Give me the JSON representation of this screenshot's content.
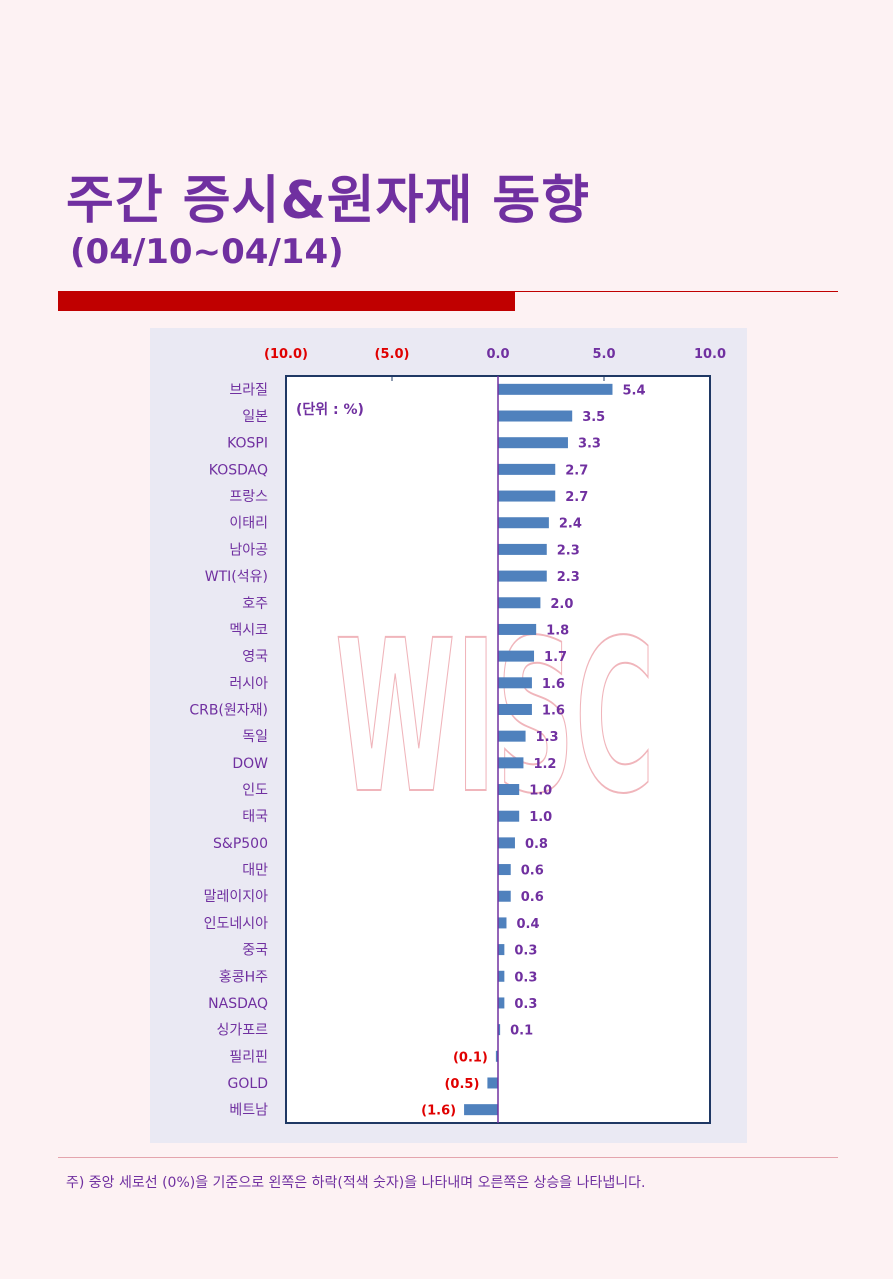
{
  "header": {
    "title": "주간 증시&원자재 동향",
    "subtitle": "(04/10~04/14)"
  },
  "footnote": "주) 중앙 세로선 (0%)을 기준으로 왼쪽은 하락(적색 숫자)을 나타내며 오른쪽은 상승을 나타냅니다.",
  "colors": {
    "bar": "#4f81bd",
    "negative_label": "#e00000",
    "text": "#7030a0",
    "zero_line": "#7030a0",
    "frame": "#1f3864"
  },
  "chart_data": {
    "type": "bar",
    "orientation": "horizontal",
    "unit_label": "(단위 : %)",
    "watermark": "WISC",
    "xlim": [
      -10,
      10
    ],
    "x_ticks": [
      {
        "value": -10,
        "label": "(10.0)"
      },
      {
        "value": -5,
        "label": "(5.0)"
      },
      {
        "value": 0,
        "label": "0.0"
      },
      {
        "value": 5,
        "label": "5.0"
      },
      {
        "value": 10,
        "label": "10.0"
      }
    ],
    "categories": [
      "브라질",
      "일본",
      "KOSPI",
      "KOSDAQ",
      "프랑스",
      "이태리",
      "남아공",
      "WTI(석유)",
      "호주",
      "멕시코",
      "영국",
      "러시아",
      "CRB(원자재)",
      "독일",
      "DOW",
      "인도",
      "태국",
      "S&P500",
      "대만",
      "말레이지아",
      "인도네시아",
      "중국",
      "홍콩H주",
      "NASDAQ",
      "싱가포르",
      "필리핀",
      "GOLD",
      "베트남"
    ],
    "values": [
      5.4,
      3.5,
      3.3,
      2.7,
      2.7,
      2.4,
      2.3,
      2.3,
      2.0,
      1.8,
      1.7,
      1.6,
      1.6,
      1.3,
      1.2,
      1.0,
      1.0,
      0.8,
      0.6,
      0.6,
      0.4,
      0.3,
      0.3,
      0.3,
      0.1,
      -0.1,
      -0.5,
      -1.6
    ],
    "value_labels": [
      "5.4",
      "3.5",
      "3.3",
      "2.7",
      "2.7",
      "2.4",
      "2.3",
      "2.3",
      "2.0",
      "1.8",
      "1.7",
      "1.6",
      "1.6",
      "1.3",
      "1.2",
      "1.0",
      "1.0",
      "0.8",
      "0.6",
      "0.6",
      "0.4",
      "0.3",
      "0.3",
      "0.3",
      "0.1",
      "(0.1)",
      "(0.5)",
      "(1.6)"
    ]
  }
}
